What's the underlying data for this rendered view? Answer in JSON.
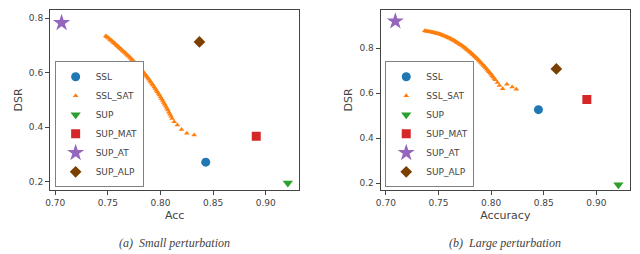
{
  "chart_data": [
    {
      "type": "scatter",
      "title": "(a)  Small perturbation",
      "xlabel": "Acc",
      "ylabel": "DSR",
      "xlim": [
        0.695,
        0.932
      ],
      "ylim": [
        0.17,
        0.83
      ],
      "xticks": [
        {
          "value": 0.7,
          "label": "0.70"
        },
        0.75,
        {
          "value": 0.8,
          "label": "0.80"
        },
        0.85,
        {
          "value": 0.9,
          "label": "0.90"
        }
      ],
      "yticks": [
        0.2,
        0.4,
        0.6,
        0.8
      ],
      "grid": false,
      "legend": "lower left",
      "series": [
        {
          "name": "SSL",
          "color": "#1f77b4",
          "marker": "circle",
          "x": [
            0.843
          ],
          "values": [
            0.272
          ]
        },
        {
          "name": "SSL_SAT",
          "color": "#ff7f0e",
          "marker": "triangle-up",
          "x": [
            0.748,
            0.749,
            0.75,
            0.751,
            0.752,
            0.753,
            0.754,
            0.755,
            0.756,
            0.757,
            0.758,
            0.759,
            0.76,
            0.761,
            0.762,
            0.763,
            0.764,
            0.765,
            0.766,
            0.767,
            0.768,
            0.769,
            0.77,
            0.771,
            0.772,
            0.773,
            0.774,
            0.775,
            0.776,
            0.777,
            0.778,
            0.779,
            0.78,
            0.781,
            0.782,
            0.783,
            0.784,
            0.785,
            0.786,
            0.787,
            0.788,
            0.789,
            0.79,
            0.791,
            0.792,
            0.793,
            0.794,
            0.795,
            0.796,
            0.797,
            0.798,
            0.799,
            0.8,
            0.801,
            0.802,
            0.803,
            0.804,
            0.805,
            0.806,
            0.807,
            0.808,
            0.809,
            0.81,
            0.811,
            0.813,
            0.816,
            0.82,
            0.825,
            0.832
          ],
          "values": [
            0.735,
            0.732,
            0.729,
            0.726,
            0.722,
            0.719,
            0.716,
            0.712,
            0.709,
            0.706,
            0.702,
            0.699,
            0.695,
            0.692,
            0.688,
            0.685,
            0.681,
            0.678,
            0.674,
            0.671,
            0.667,
            0.663,
            0.66,
            0.656,
            0.652,
            0.648,
            0.644,
            0.64,
            0.636,
            0.632,
            0.628,
            0.624,
            0.619,
            0.615,
            0.61,
            0.606,
            0.601,
            0.596,
            0.591,
            0.586,
            0.581,
            0.576,
            0.57,
            0.565,
            0.559,
            0.554,
            0.548,
            0.542,
            0.536,
            0.53,
            0.524,
            0.518,
            0.511,
            0.505,
            0.498,
            0.491,
            0.484,
            0.477,
            0.47,
            0.463,
            0.455,
            0.448,
            0.44,
            0.432,
            0.42,
            0.408,
            0.392,
            0.378,
            0.372
          ]
        },
        {
          "name": "SUP",
          "color": "#2ca02c",
          "marker": "triangle-down",
          "x": [
            0.921
          ],
          "values": [
            0.196
          ]
        },
        {
          "name": "SUP_MAT",
          "color": "#d62728",
          "marker": "square",
          "x": [
            0.891
          ],
          "values": [
            0.367
          ]
        },
        {
          "name": "SUP_AT",
          "color": "#9467bd",
          "marker": "star",
          "x": [
            0.706
          ],
          "values": [
            0.783
          ]
        },
        {
          "name": "SUP_ALP",
          "color": "#7b3f00",
          "marker": "diamond",
          "x": [
            0.837
          ],
          "values": [
            0.713
          ]
        }
      ]
    },
    {
      "type": "scatter",
      "title": "(b)  Large perturbation",
      "xlabel": "Accuracy",
      "ylabel": "DSR",
      "xlim": [
        0.695,
        0.932
      ],
      "ylim": [
        0.17,
        0.97
      ],
      "xticks": [
        {
          "value": 0.7,
          "label": "0.70"
        },
        0.75,
        {
          "value": 0.8,
          "label": "0.80"
        },
        0.85,
        {
          "value": 0.9,
          "label": "0.90"
        }
      ],
      "yticks": [
        0.2,
        0.4,
        0.6,
        0.8
      ],
      "grid": false,
      "legend": "lower left",
      "series": [
        {
          "name": "SSL",
          "color": "#1f77b4",
          "marker": "circle",
          "x": [
            0.845
          ],
          "values": [
            0.527
          ]
        },
        {
          "name": "SSL_SAT",
          "color": "#ff7f0e",
          "marker": "triangle-up",
          "x": [
            0.737,
            0.738,
            0.739,
            0.74,
            0.741,
            0.742,
            0.743,
            0.744,
            0.745,
            0.746,
            0.747,
            0.748,
            0.749,
            0.75,
            0.751,
            0.752,
            0.753,
            0.754,
            0.755,
            0.756,
            0.757,
            0.758,
            0.759,
            0.76,
            0.761,
            0.762,
            0.763,
            0.764,
            0.765,
            0.766,
            0.767,
            0.768,
            0.769,
            0.77,
            0.771,
            0.772,
            0.773,
            0.774,
            0.775,
            0.776,
            0.777,
            0.778,
            0.779,
            0.78,
            0.781,
            0.782,
            0.783,
            0.784,
            0.785,
            0.786,
            0.787,
            0.788,
            0.789,
            0.79,
            0.791,
            0.792,
            0.793,
            0.794,
            0.795,
            0.796,
            0.797,
            0.798,
            0.799,
            0.8,
            0.801,
            0.802,
            0.803,
            0.804,
            0.806,
            0.808,
            0.811,
            0.815,
            0.82,
            0.824
          ],
          "values": [
            0.878,
            0.877,
            0.876,
            0.875,
            0.874,
            0.873,
            0.872,
            0.871,
            0.87,
            0.869,
            0.868,
            0.867,
            0.866,
            0.864,
            0.863,
            0.861,
            0.86,
            0.858,
            0.856,
            0.854,
            0.852,
            0.85,
            0.848,
            0.846,
            0.844,
            0.841,
            0.839,
            0.836,
            0.834,
            0.831,
            0.828,
            0.825,
            0.822,
            0.819,
            0.816,
            0.813,
            0.81,
            0.806,
            0.803,
            0.799,
            0.795,
            0.791,
            0.787,
            0.783,
            0.779,
            0.775,
            0.771,
            0.766,
            0.762,
            0.757,
            0.753,
            0.748,
            0.743,
            0.738,
            0.733,
            0.728,
            0.723,
            0.718,
            0.712,
            0.707,
            0.701,
            0.696,
            0.69,
            0.684,
            0.678,
            0.672,
            0.666,
            0.66,
            0.648,
            0.635,
            0.62,
            0.64,
            0.628,
            0.618
          ]
        },
        {
          "name": "SUP",
          "color": "#2ca02c",
          "marker": "triangle-down",
          "x": [
            0.921
          ],
          "values": [
            0.193
          ]
        },
        {
          "name": "SUP_MAT",
          "color": "#d62728",
          "marker": "square",
          "x": [
            0.891
          ],
          "values": [
            0.572
          ]
        },
        {
          "name": "SUP_AT",
          "color": "#9467bd",
          "marker": "star",
          "x": [
            0.709
          ],
          "values": [
            0.92
          ]
        },
        {
          "name": "SUP_ALP",
          "color": "#7b3f00",
          "marker": "diamond",
          "x": [
            0.862
          ],
          "values": [
            0.708
          ]
        }
      ]
    }
  ]
}
